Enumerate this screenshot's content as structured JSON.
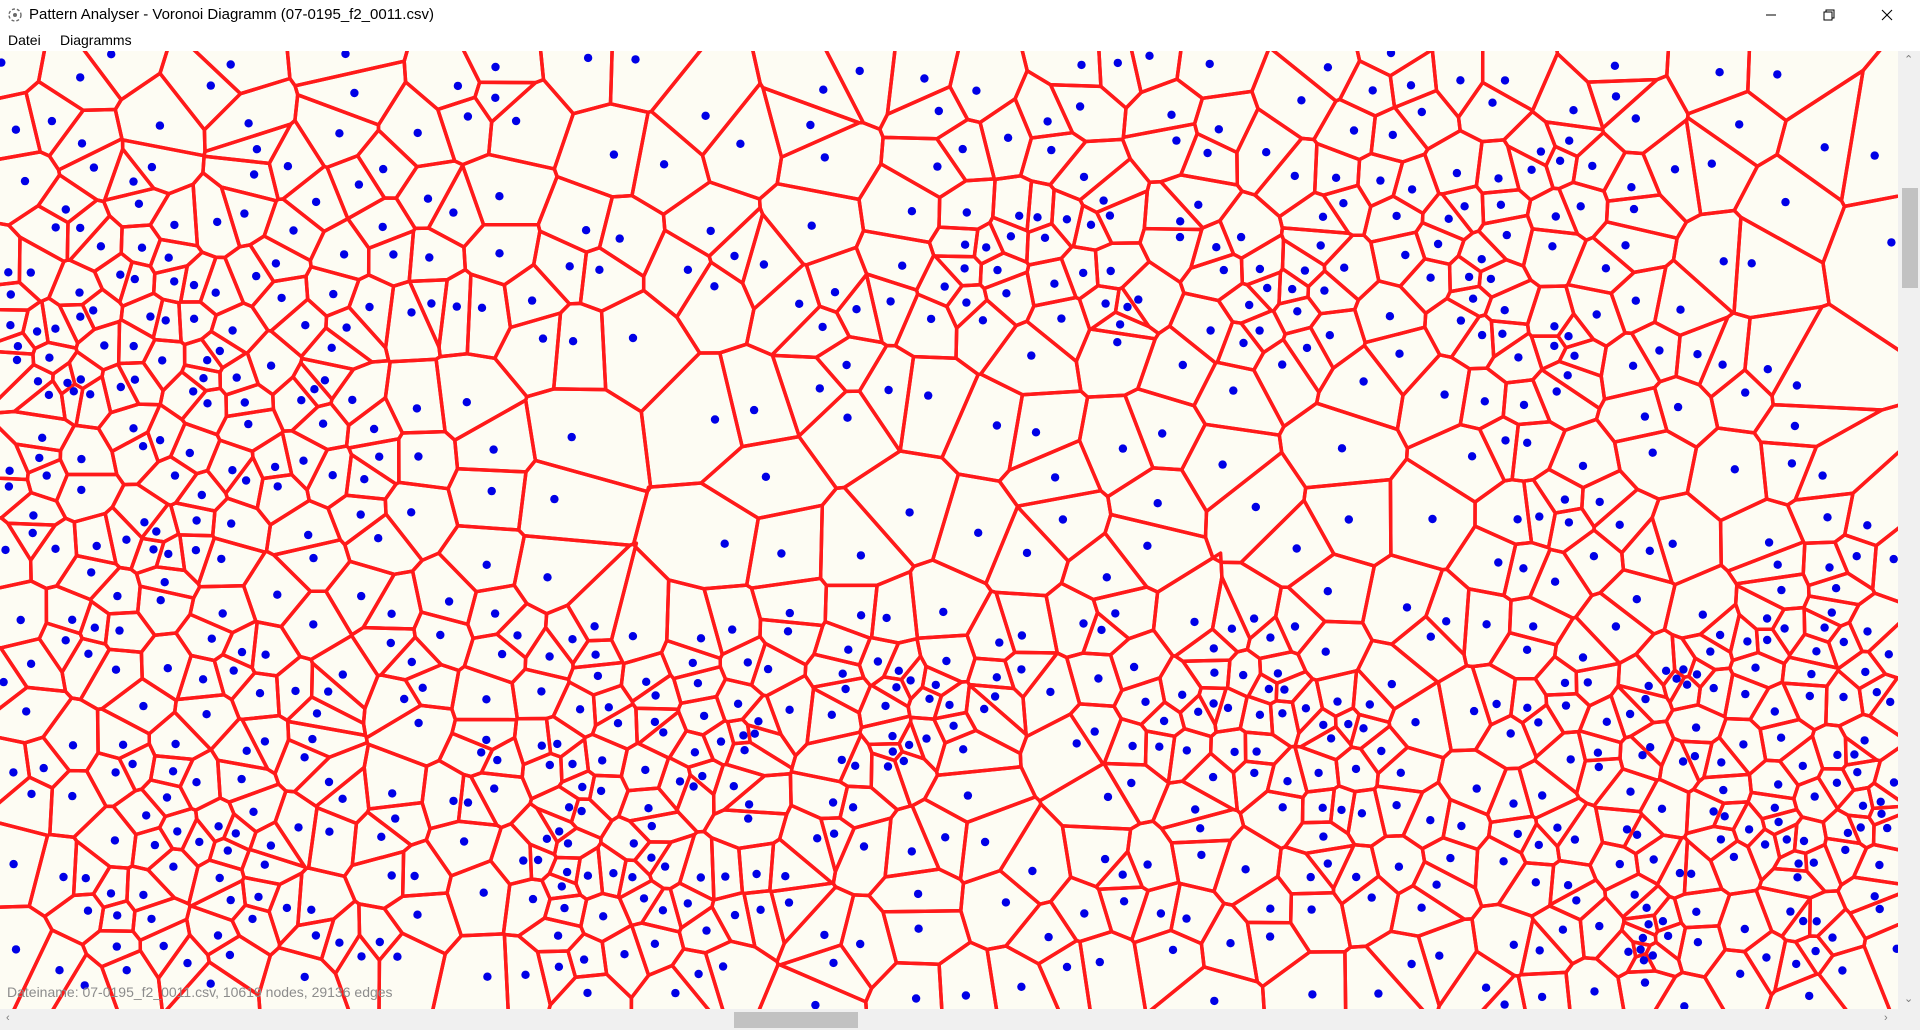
{
  "window": {
    "title": "Pattern Analyser - Voronoi Diagramm (07-0195_f2_0011.csv)",
    "minimize_glyph": "—",
    "maximize_glyph": "❐",
    "close_glyph": "✕"
  },
  "menu": {
    "items": [
      "Datei",
      "Diagramms"
    ]
  },
  "canvas": {
    "background": "#fdfcf3",
    "edge_color": "#ff1a1a",
    "node_color": "#0000e6"
  },
  "status": {
    "text": "Dateiname: 07-0195_f2_0011.csv, 10619 nodes, 29136 edges"
  },
  "scrollbars": {
    "up_arrow": "⌃",
    "down_arrow": "⌄",
    "left_arrow": "‹",
    "right_arrow": "›"
  }
}
